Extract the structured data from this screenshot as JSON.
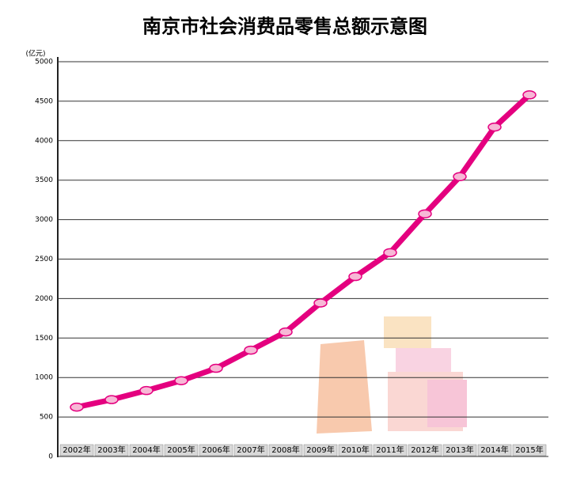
{
  "chart_data": {
    "type": "line",
    "title": "南京市社会消费品零售总额示意图",
    "y_label": "(亿元)",
    "categories": [
      "2002年",
      "2003年",
      "2004年",
      "2005年",
      "2006年",
      "2007年",
      "2008年",
      "2009年",
      "2010年",
      "2011年",
      "2012年",
      "2013年",
      "2014年",
      "2015年"
    ],
    "series": [
      {
        "name": "社会消费品零售总额",
        "color": "#e4007f",
        "values": [
          625,
          720,
          835,
          960,
          1117,
          1347,
          1577,
          1944,
          2279,
          2582,
          3073,
          3544,
          4172,
          4580
        ]
      }
    ],
    "ylim": [
      0,
      5000
    ],
    "yticks": [
      0,
      500,
      1000,
      1500,
      2000,
      2500,
      3000,
      3500,
      4000,
      4500,
      5000
    ],
    "grid": true
  }
}
